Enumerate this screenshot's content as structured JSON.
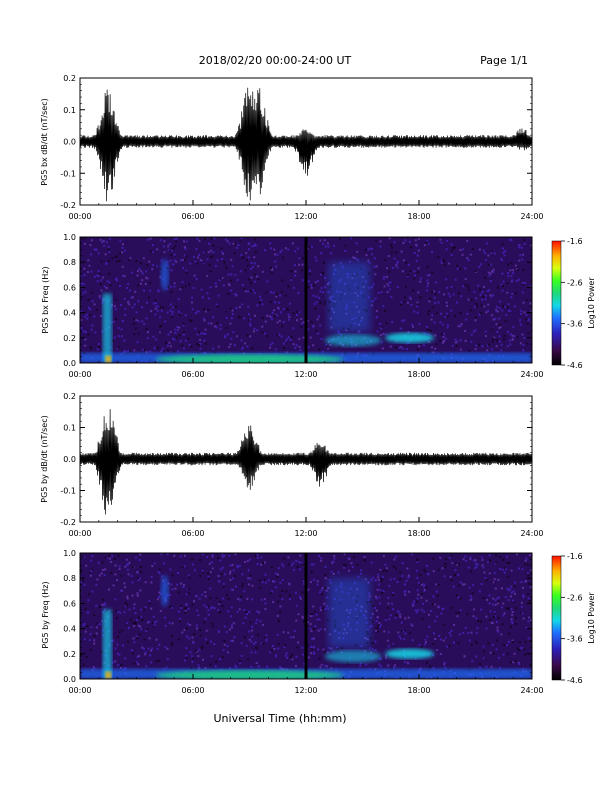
{
  "header": {
    "title": "2018/02/20  00:00-24:00 UT",
    "page": "Page 1/1"
  },
  "xlabel": "Universal Time (hh:mm)",
  "chart_data": [
    {
      "type": "line",
      "ylabel": "PG5 bx dB/dt (nT/sec)",
      "xlim": [
        "00:00",
        "24:00"
      ],
      "xticks": [
        "00:00",
        "06:00",
        "12:00",
        "18:00",
        "24:00"
      ],
      "ylim": [
        -0.2,
        0.2
      ],
      "yticks": [
        "0.2",
        "0.1",
        "0.0",
        "-0.1",
        "-0.2"
      ],
      "events": [
        {
          "x": "01:30",
          "ymax": 0.18,
          "ymin": -0.2
        },
        {
          "x": "09:00",
          "ymax": 0.19,
          "ymin": -0.19
        },
        {
          "x": "09:30",
          "ymax": 0.17,
          "ymin": -0.17
        },
        {
          "x": "12:00",
          "ymax": 0.05,
          "ymin": -0.12
        },
        {
          "x": "23:30",
          "ymax": 0.05,
          "ymin": -0.03
        }
      ],
      "color": "#000000"
    },
    {
      "type": "heatmap",
      "ylabel": "PG5 bx Freq (Hz)",
      "xlim": [
        "00:00",
        "24:00"
      ],
      "xticks": [
        "00:00",
        "06:00",
        "12:00",
        "18:00",
        "24:00"
      ],
      "ylim": [
        0.0,
        1.0
      ],
      "yticks": [
        "1.0",
        "0.8",
        "0.6",
        "0.4",
        "0.2",
        "0.0"
      ],
      "colorbar": {
        "label": "Log10 Power",
        "ticks": [
          "-1.6",
          "-2.6",
          "-3.6",
          "-4.6"
        ],
        "range": [
          -4.6,
          -1.6
        ]
      },
      "gap": "12:00"
    },
    {
      "type": "line",
      "ylabel": "PG5 by dB/dt (nT/sec)",
      "xlim": [
        "00:00",
        "24:00"
      ],
      "xticks": [
        "00:00",
        "06:00",
        "12:00",
        "18:00",
        "24:00"
      ],
      "ylim": [
        -0.2,
        0.2
      ],
      "yticks": [
        "0.2",
        "0.1",
        "0.0",
        "-0.1",
        "-0.2"
      ],
      "events": [
        {
          "x": "01:30",
          "ymax": 0.18,
          "ymin": -0.2
        },
        {
          "x": "09:00",
          "ymax": 0.12,
          "ymin": -0.1
        },
        {
          "x": "12:45",
          "ymax": 0.06,
          "ymin": -0.09
        }
      ],
      "color": "#000000"
    },
    {
      "type": "heatmap",
      "ylabel": "PG5 by Freq (Hz)",
      "xlim": [
        "00:00",
        "24:00"
      ],
      "xticks": [
        "00:00",
        "06:00",
        "12:00",
        "18:00",
        "24:00"
      ],
      "ylim": [
        0.0,
        1.0
      ],
      "yticks": [
        "1.0",
        "0.8",
        "0.6",
        "0.4",
        "0.2",
        "0.0"
      ],
      "colorbar": {
        "label": "Log10 Power",
        "ticks": [
          "-1.6",
          "-2.6",
          "-3.6",
          "-4.6"
        ],
        "range": [
          -4.6,
          -1.6
        ]
      },
      "gap": "12:00"
    }
  ]
}
